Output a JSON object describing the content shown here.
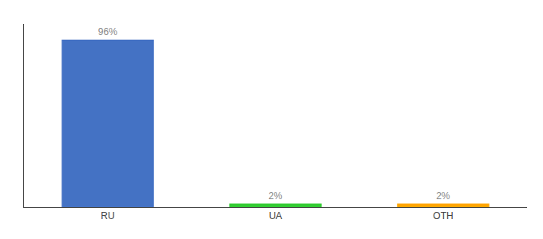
{
  "chart_data": {
    "type": "bar",
    "categories": [
      "RU",
      "UA",
      "OTH"
    ],
    "values": [
      96,
      2,
      2
    ],
    "value_labels": [
      "96%",
      "2%",
      "2%"
    ],
    "data_labels": true,
    "colors": [
      "#4472C4",
      "#33CC33",
      "#FFA500"
    ],
    "ylim": [
      0,
      105
    ],
    "tick_labels": "x",
    "grid": false
  }
}
